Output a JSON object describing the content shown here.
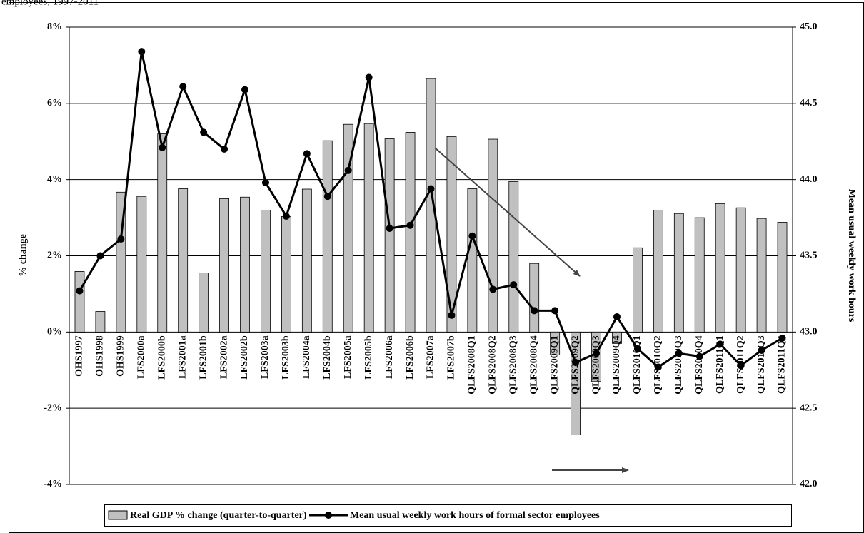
{
  "chart_data": {
    "type": "bar_line",
    "title": "employees, 1997-2011",
    "y_label": "% change",
    "y2_label": "Mean usual weekly work hours",
    "categories": [
      "OHS1997",
      "OHS1998",
      "OHS1999",
      "LFS2000a",
      "LFS2000b",
      "LFS2001a",
      "LFS2001b",
      "LFS2002a",
      "LFS2002b",
      "LFS2003a",
      "LFS2003b",
      "LFS2004a",
      "LFS2004b",
      "LFS2005a",
      "LFS2005b",
      "LFS2006a",
      "LFS2006b",
      "LFS2007a",
      "LFS2007b",
      "QLFS2008Q1",
      "QLFS2008Q2",
      "QLFS2008Q3",
      "QLFS2008Q4",
      "QLFS2009Q1",
      "QLFS2009Q2",
      "QLFS2009Q3",
      "QLFS2009Q4",
      "QLFS2010Q1",
      "QLFS2010Q2",
      "QLFS2010Q3",
      "QLFS2010Q4",
      "QLFS2011Q1",
      "QLFS2011Q2",
      "QLFS2011Q3",
      "QLFS2011Q4"
    ],
    "series": [
      {
        "name": "Real GDP % change (quarter-to-quarter)",
        "type": "bar",
        "color": "#c0c0c0",
        "values": [
          1.59,
          0.54,
          3.67,
          3.56,
          5.2,
          3.76,
          1.55,
          3.5,
          3.54,
          3.2,
          3.03,
          3.75,
          5.02,
          5.45,
          5.47,
          5.07,
          5.24,
          6.65,
          5.13,
          3.76,
          5.06,
          3.95,
          1.8,
          -0.6,
          -2.7,
          -1.3,
          -0.3,
          2.21,
          3.2,
          3.11,
          3.0,
          3.37,
          3.26,
          2.98,
          2.88
        ]
      },
      {
        "name": "Mean usual weekly work hours of formal sector employees",
        "type": "line",
        "axis": "y2",
        "color": "#000000",
        "values": [
          43.27,
          43.5,
          43.61,
          44.84,
          44.21,
          44.61,
          44.31,
          44.2,
          44.59,
          43.98,
          43.76,
          44.17,
          43.89,
          44.06,
          44.67,
          43.68,
          43.7,
          43.94,
          43.11,
          43.63,
          43.28,
          43.31,
          43.14,
          43.14,
          42.8,
          42.86,
          43.1,
          42.89,
          42.77,
          42.86,
          42.84,
          42.92,
          42.78,
          42.88,
          42.96
        ]
      }
    ],
    "ylim": [
      -4,
      8
    ],
    "yticks": [
      {
        "value": -4,
        "label": "-4%"
      },
      {
        "value": -2,
        "label": "-2%"
      },
      {
        "value": 0,
        "label": "0%"
      },
      {
        "value": 2,
        "label": "2%"
      },
      {
        "value": 4,
        "label": "4%"
      },
      {
        "value": 6,
        "label": "6%"
      },
      {
        "value": 8,
        "label": "8%"
      }
    ],
    "y2lim": [
      42,
      45
    ],
    "y2ticks": [
      {
        "value": 42,
        "label": "42.0"
      },
      42.5,
      {
        "value": 43,
        "label": "43.0"
      },
      43.5,
      {
        "value": 44,
        "label": "44.0"
      },
      44.5,
      {
        "value": 45,
        "label": "45.0"
      }
    ],
    "grid": true,
    "legend": "bottom"
  }
}
